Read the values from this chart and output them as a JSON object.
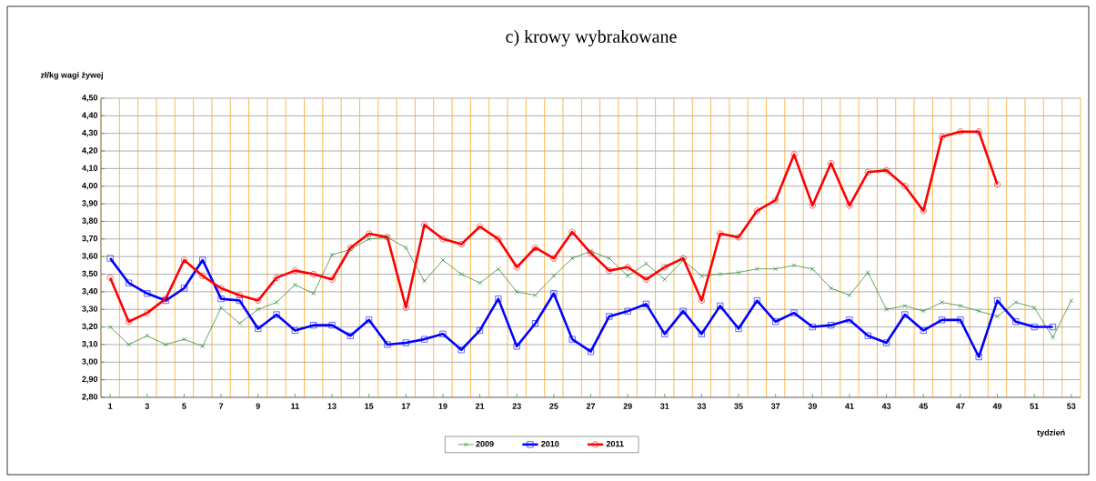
{
  "chart_data": {
    "type": "line",
    "title": "c) krowy wybrakowane",
    "ylabel": "zł/kg wagi żywej",
    "xlabel": "tydzień",
    "categories": [
      "1",
      null,
      "3",
      null,
      "5",
      null,
      "7",
      null,
      "9",
      null,
      "11",
      null,
      "13",
      null,
      "15",
      null,
      "17",
      null,
      "19",
      null,
      "21",
      null,
      "23",
      null,
      "25",
      null,
      "27",
      null,
      "29",
      null,
      "31",
      null,
      "33",
      null,
      "35",
      null,
      "37",
      null,
      "39",
      null,
      "41",
      null,
      "43",
      null,
      "45",
      null,
      "47",
      null,
      "49",
      null,
      "51",
      null,
      "53"
    ],
    "series": [
      {
        "name": "2009",
        "color": "#1e801e",
        "marker": "cross",
        "values": [
          3.2,
          3.1,
          3.15,
          3.1,
          3.13,
          3.09,
          3.31,
          3.22,
          3.3,
          3.34,
          3.44,
          3.39,
          3.61,
          3.64,
          3.7,
          3.71,
          3.65,
          3.46,
          3.58,
          3.5,
          3.45,
          3.53,
          3.4,
          3.38,
          3.49,
          3.59,
          3.63,
          3.59,
          3.49,
          3.56,
          3.47,
          3.58,
          3.49,
          3.5,
          3.51,
          3.53,
          3.53,
          3.55,
          3.53,
          3.42,
          3.38,
          3.51,
          3.3,
          3.32,
          3.29,
          3.34,
          3.32,
          3.29,
          3.26,
          3.34,
          3.31,
          3.14,
          3.35
        ]
      },
      {
        "name": "2010",
        "color": "#0000ff",
        "marker": "square",
        "values": [
          3.59,
          3.45,
          3.39,
          3.35,
          3.42,
          3.58,
          3.36,
          3.35,
          3.19,
          3.27,
          3.18,
          3.21,
          3.21,
          3.15,
          3.24,
          3.1,
          3.11,
          3.13,
          3.16,
          3.07,
          3.18,
          3.36,
          3.09,
          3.22,
          3.39,
          3.13,
          3.06,
          3.26,
          3.29,
          3.33,
          3.16,
          3.29,
          3.16,
          3.32,
          3.19,
          3.35,
          3.23,
          3.28,
          3.2,
          3.21,
          3.24,
          3.15,
          3.11,
          3.27,
          3.18,
          3.24,
          3.24,
          3.03,
          3.35,
          3.23,
          3.2,
          3.2,
          null
        ]
      },
      {
        "name": "2011",
        "color": "#ff0000",
        "marker": "circle",
        "values": [
          3.48,
          3.23,
          3.28,
          3.36,
          3.58,
          3.49,
          3.42,
          3.38,
          3.35,
          3.48,
          3.52,
          3.5,
          3.47,
          3.65,
          3.73,
          3.71,
          3.31,
          3.78,
          3.7,
          3.67,
          3.77,
          3.7,
          3.54,
          3.65,
          3.59,
          3.74,
          3.62,
          3.52,
          3.54,
          3.47,
          3.54,
          3.59,
          3.35,
          3.73,
          3.71,
          3.86,
          3.92,
          4.18,
          3.89,
          4.13,
          3.89,
          4.08,
          4.09,
          4.0,
          3.86,
          4.28,
          4.31,
          4.31,
          4.01,
          null,
          null,
          null,
          null
        ]
      }
    ],
    "ylim": [
      2.8,
      4.5
    ],
    "yticks": [
      {
        "value": 2.8,
        "label": "2,80"
      },
      {
        "value": 2.9,
        "label": "2,90"
      },
      {
        "value": 3.0,
        "label": "3,00"
      },
      {
        "value": 3.1,
        "label": "3,10"
      },
      {
        "value": 3.2,
        "label": "3,20"
      },
      {
        "value": 3.3,
        "label": "3,30"
      },
      {
        "value": 3.4,
        "label": "3,40"
      },
      {
        "value": 3.5,
        "label": "3,50"
      },
      {
        "value": 3.6,
        "label": "3,60"
      },
      {
        "value": 3.7,
        "label": "3,70"
      },
      {
        "value": 3.8,
        "label": "3,80"
      },
      {
        "value": 3.9,
        "label": "3,90"
      },
      {
        "value": 4.0,
        "label": "4,00"
      },
      {
        "value": 4.1,
        "label": "4,10"
      },
      {
        "value": 4.2,
        "label": "4,20"
      },
      {
        "value": 4.3,
        "label": "4,30"
      },
      {
        "value": 4.4,
        "label": "4,40"
      },
      {
        "value": 4.5,
        "label": "4,50"
      }
    ],
    "grid": true,
    "legend": "bottom",
    "line_style": "solid"
  }
}
